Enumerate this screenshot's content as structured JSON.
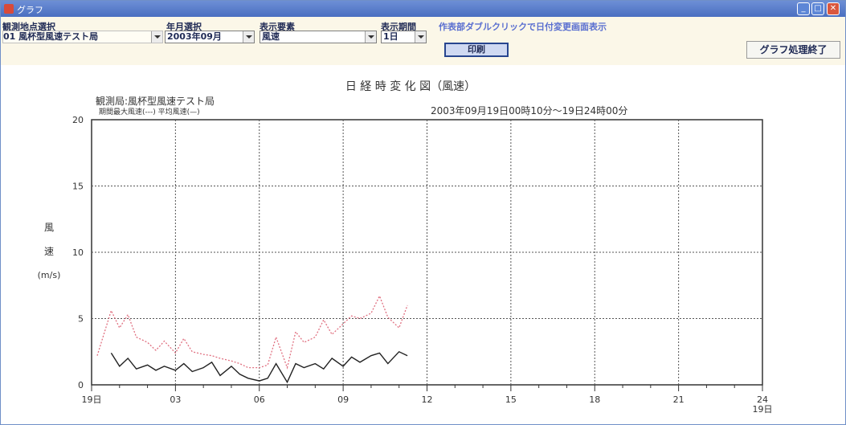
{
  "window": {
    "title": "グラフ",
    "min_icon": "minimize-icon",
    "max_icon": "maximize-icon",
    "close_icon": "close-icon"
  },
  "toolbar": {
    "station_label": "観測地点選択",
    "station_value": "01 風杯型風速テスト局",
    "month_label": "年月選択",
    "month_value": "2003年09月",
    "element_label": "表示要素",
    "element_value": "風速",
    "period_label": "表示期間",
    "period_value": "1日",
    "hint": "作表部ダブルクリックで日付変更画面表示",
    "print_label": "印刷",
    "end_label": "グラフ処理終了"
  },
  "chart_data": {
    "type": "line",
    "title": "日 経 時 変 化 図（風速）",
    "station_line": "観測局:風杯型風速テスト局",
    "legend_line": "期間最大風速(---) 平均風速(—)",
    "period_text": "2003年09月19日00時10分～19日24時00分",
    "ylabel": [
      "風",
      "速",
      "(m/s)"
    ],
    "ylim": [
      0,
      20
    ],
    "yticks": [
      "0",
      "5",
      "10",
      "15",
      "20"
    ],
    "xlim": [
      0,
      24
    ],
    "xticks": [
      {
        "x": 0,
        "label": "19日"
      },
      {
        "x": 3,
        "label": "03"
      },
      {
        "x": 6,
        "label": "06"
      },
      {
        "x": 9,
        "label": "09"
      },
      {
        "x": 12,
        "label": "12"
      },
      {
        "x": 15,
        "label": "15"
      },
      {
        "x": 18,
        "label": "18"
      },
      {
        "x": 21,
        "label": "21"
      },
      {
        "x": 24,
        "label": "24\n19日"
      }
    ],
    "grid": true,
    "legend": "top-left",
    "series": [
      {
        "style": "dotted",
        "color": "#e07080",
        "x": [
          0.2,
          0.7,
          1.0,
          1.3,
          1.6,
          2.0,
          2.3,
          2.6,
          3.0,
          3.3,
          3.6,
          4.0,
          4.3,
          4.6,
          5.0,
          5.3,
          5.6,
          6.0,
          6.3,
          6.6,
          7.0,
          7.3,
          7.6,
          8.0,
          8.3,
          8.6,
          9.0,
          9.3,
          9.6,
          10.0,
          10.3,
          10.6,
          11.0,
          11.3
        ],
        "y": [
          2.2,
          5.6,
          4.3,
          5.3,
          3.6,
          3.2,
          2.6,
          3.3,
          2.4,
          3.5,
          2.5,
          2.3,
          2.2,
          2.0,
          1.8,
          1.6,
          1.3,
          1.3,
          1.5,
          3.6,
          1.3,
          4.0,
          3.2,
          3.6,
          4.9,
          3.8,
          4.6,
          5.2,
          5.0,
          5.4,
          6.7,
          5.1,
          4.3,
          6.0
        ]
      },
      {
        "style": "solid",
        "color": "#222222",
        "x": [
          0.7,
          1.0,
          1.3,
          1.6,
          2.0,
          2.3,
          2.6,
          3.0,
          3.3,
          3.6,
          4.0,
          4.3,
          4.6,
          5.0,
          5.3,
          5.6,
          6.0,
          6.3,
          6.6,
          7.0,
          7.3,
          7.6,
          8.0,
          8.3,
          8.6,
          9.0,
          9.3,
          9.6,
          10.0,
          10.3,
          10.6,
          11.0,
          11.3
        ],
        "y": [
          2.4,
          1.4,
          2.0,
          1.2,
          1.5,
          1.1,
          1.4,
          1.1,
          1.6,
          1.0,
          1.3,
          1.7,
          0.7,
          1.4,
          0.8,
          0.5,
          0.3,
          0.5,
          1.6,
          0.2,
          1.6,
          1.3,
          1.6,
          1.2,
          2.0,
          1.4,
          2.1,
          1.7,
          2.2,
          2.4,
          1.6,
          2.5,
          2.2
        ]
      }
    ]
  }
}
